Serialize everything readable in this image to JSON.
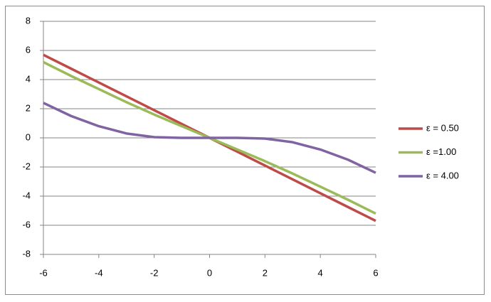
{
  "chart_data": {
    "type": "line",
    "x": [
      -6,
      -5,
      -4,
      -3,
      -2,
      -1,
      0,
      1,
      2,
      3,
      4,
      5,
      6
    ],
    "series": [
      {
        "name": "ε = 0.50",
        "color": "#be4b48",
        "values": [
          5.7,
          4.75,
          3.8,
          2.85,
          1.9,
          0.95,
          0,
          -0.95,
          -1.9,
          -2.85,
          -3.8,
          -4.75,
          -5.7
        ]
      },
      {
        "name": "ε =1.00",
        "color": "#9bbb59",
        "values": [
          5.2,
          4.25,
          3.35,
          2.45,
          1.6,
          0.8,
          0,
          -0.8,
          -1.6,
          -2.45,
          -3.35,
          -4.25,
          -5.2
        ]
      },
      {
        "name": "ε = 4.00",
        "color": "#8064a2",
        "values": [
          2.4,
          1.5,
          0.8,
          0.3,
          0.05,
          0,
          0,
          0,
          -0.05,
          -0.3,
          -0.8,
          -1.5,
          -2.4
        ]
      }
    ],
    "xlim": [
      -6,
      6
    ],
    "xticks": [
      -6,
      -4,
      -2,
      0,
      2,
      4,
      6
    ],
    "ylim": [
      -8,
      8
    ],
    "yticks": [
      -8,
      -6,
      -4,
      -2,
      0,
      2,
      4,
      6,
      8
    ],
    "grid": true,
    "legend": "right"
  }
}
